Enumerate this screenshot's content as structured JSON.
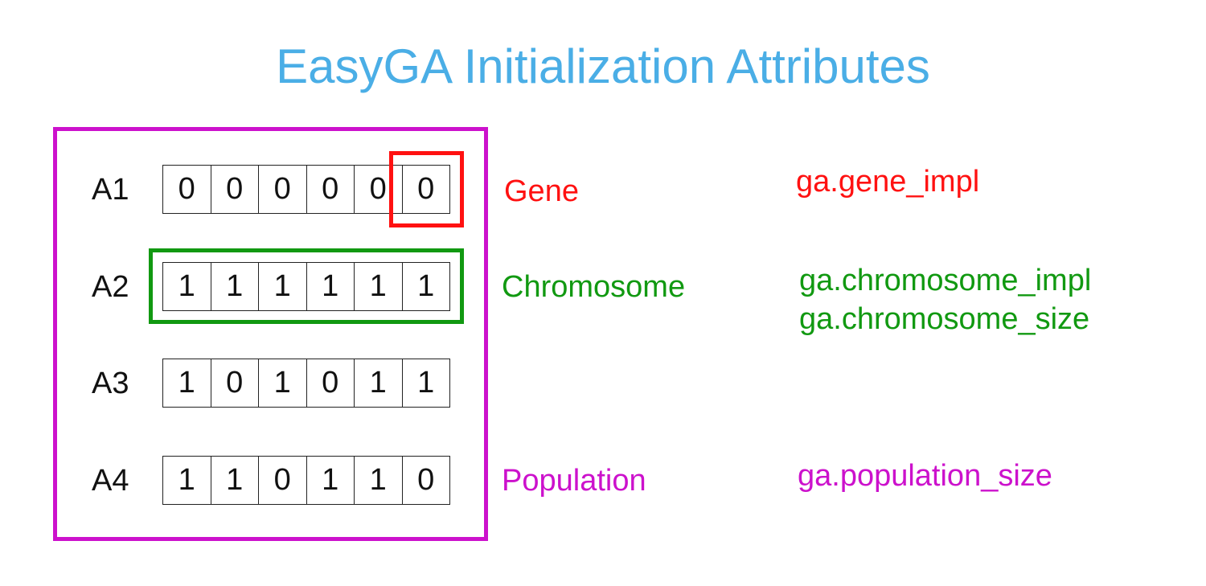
{
  "title": "EasyGA Initialization Attributes",
  "colors": {
    "title": "#4aaee6",
    "gene": "#ff1111",
    "chromosome": "#119911",
    "population": "#cc11cc"
  },
  "rows": [
    {
      "label": "A1",
      "genes": [
        "0",
        "0",
        "0",
        "0",
        "0",
        "0"
      ]
    },
    {
      "label": "A2",
      "genes": [
        "1",
        "1",
        "1",
        "1",
        "1",
        "1"
      ]
    },
    {
      "label": "A3",
      "genes": [
        "1",
        "0",
        "1",
        "0",
        "1",
        "1"
      ]
    },
    {
      "label": "A4",
      "genes": [
        "1",
        "1",
        "0",
        "1",
        "1",
        "0"
      ]
    }
  ],
  "labels": {
    "gene": "Gene",
    "chromosome": "Chromosome",
    "population": "Population"
  },
  "attributes": {
    "gene": [
      "ga.gene_impl"
    ],
    "chromosome": [
      "ga.chromosome_impl",
      "ga.chromosome_size"
    ],
    "population": [
      "ga.population_size"
    ]
  }
}
